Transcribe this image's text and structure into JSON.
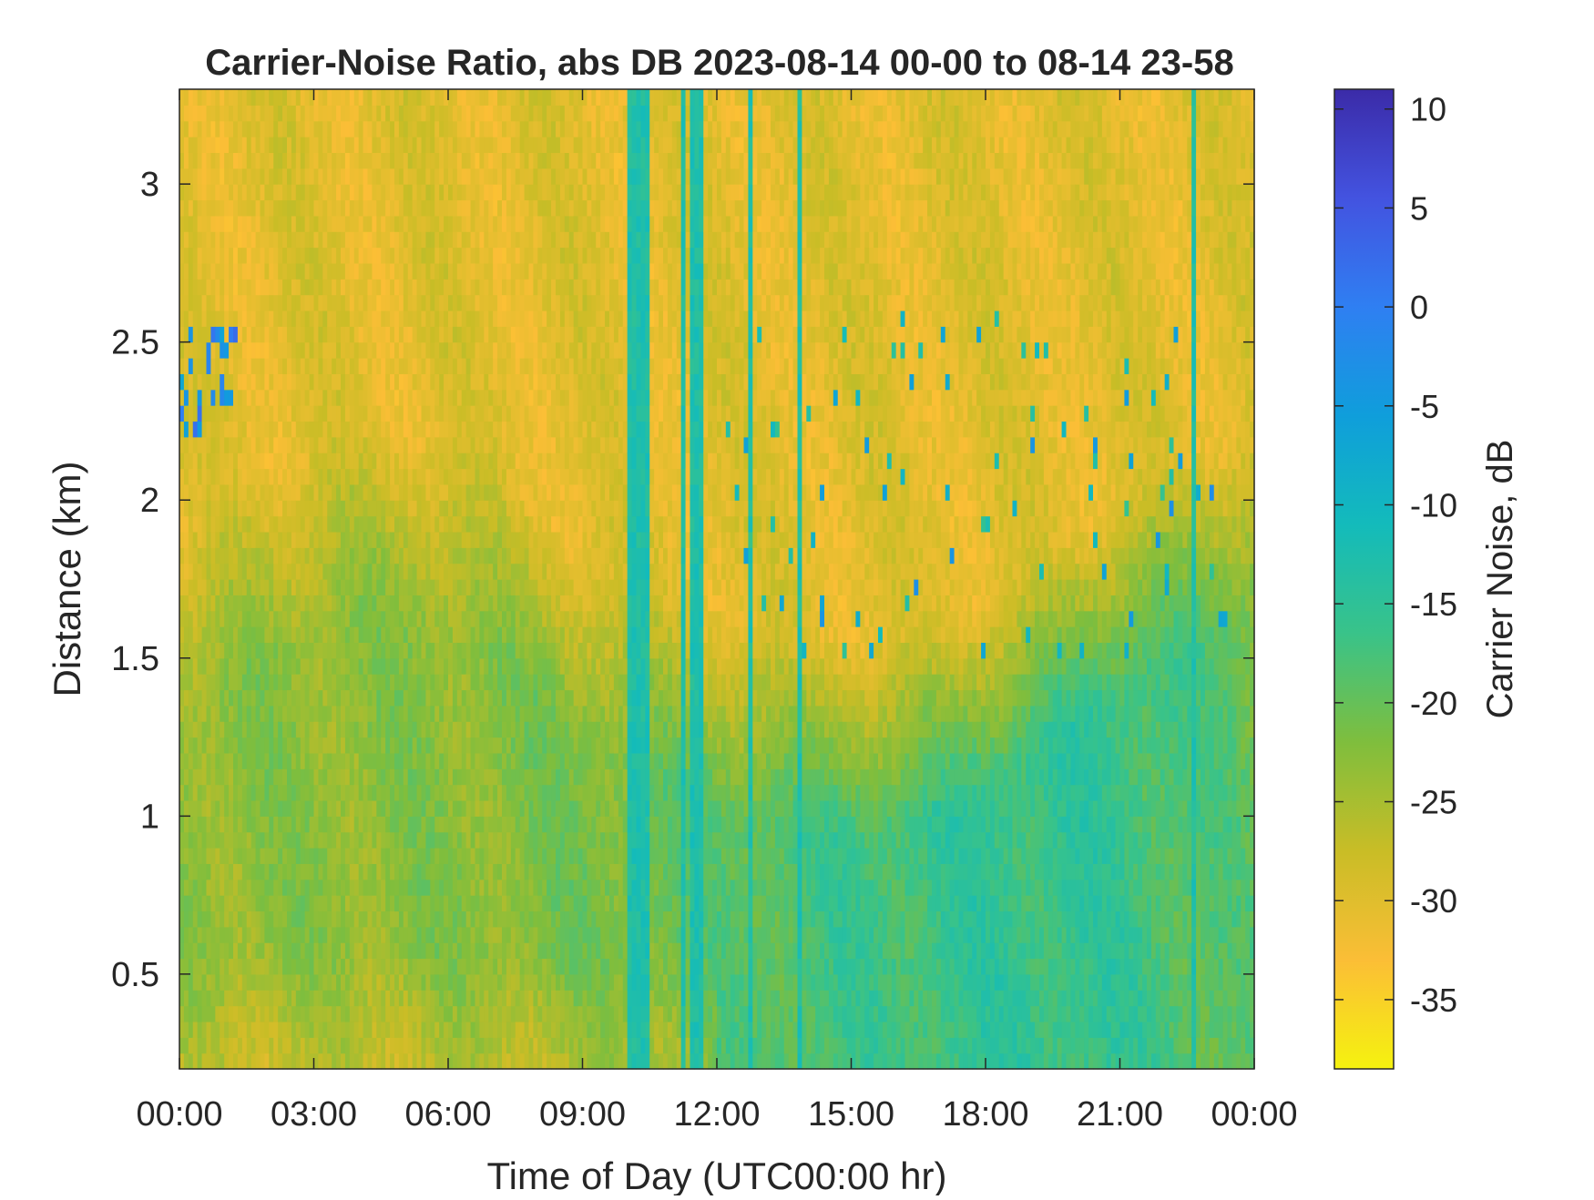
{
  "chart_data": {
    "type": "heatmap",
    "title": "Carrier-Noise Ratio, abs DB 2023-08-14 00-00 to 08-14 23-58",
    "xlabel": "Time of Day (UTC00:00 hr)",
    "ylabel": "Distance (km)",
    "x_ticks": [
      "00:00",
      "03:00",
      "06:00",
      "09:00",
      "12:00",
      "15:00",
      "18:00",
      "21:00",
      "00:00"
    ],
    "x_tick_hours": [
      0,
      3,
      6,
      9,
      12,
      15,
      18,
      21,
      24
    ],
    "xlim_hours": [
      0,
      24
    ],
    "y_ticks": [
      "0.5",
      "1",
      "1.5",
      "2",
      "2.5",
      "3"
    ],
    "y_tick_values": [
      0.5,
      1,
      1.5,
      2,
      2.5,
      3
    ],
    "ylim_km": [
      0.2,
      3.3
    ],
    "colorbar": {
      "label": "Carrier Noise, dB",
      "ticks": [
        "10",
        "5",
        "0",
        "-5",
        "-10",
        "-15",
        "-20",
        "-25",
        "-30",
        "-35"
      ],
      "tick_values": [
        10,
        5,
        0,
        -5,
        -10,
        -15,
        -20,
        -25,
        -30,
        -35
      ],
      "range": [
        -38.5,
        11
      ],
      "colormap": "parula-reversed",
      "colors": [
        "#f5f20f",
        "#fbbe36",
        "#c9bd26",
        "#7fbe3d",
        "#39c389",
        "#13bbbb",
        "#0f9edb",
        "#2f7ff2",
        "#4353e0",
        "#3b2ba8"
      ]
    },
    "grid": false,
    "description_of_field": {
      "background_dB": -30,
      "boundary_layer_dB": -19,
      "notes": "Low signal (orange/yellow, about -30 dB) dominates above 2-2.5 km; enhanced CNR (green/teal, -15 to -20 dB) below about 2 km, strongest 12:00-22:00 in the 0.6-1.8 km layer; vertical teal streaks near 10:15, 11:15-11:40, 12:45, 13:50 and 22:40."
    }
  }
}
